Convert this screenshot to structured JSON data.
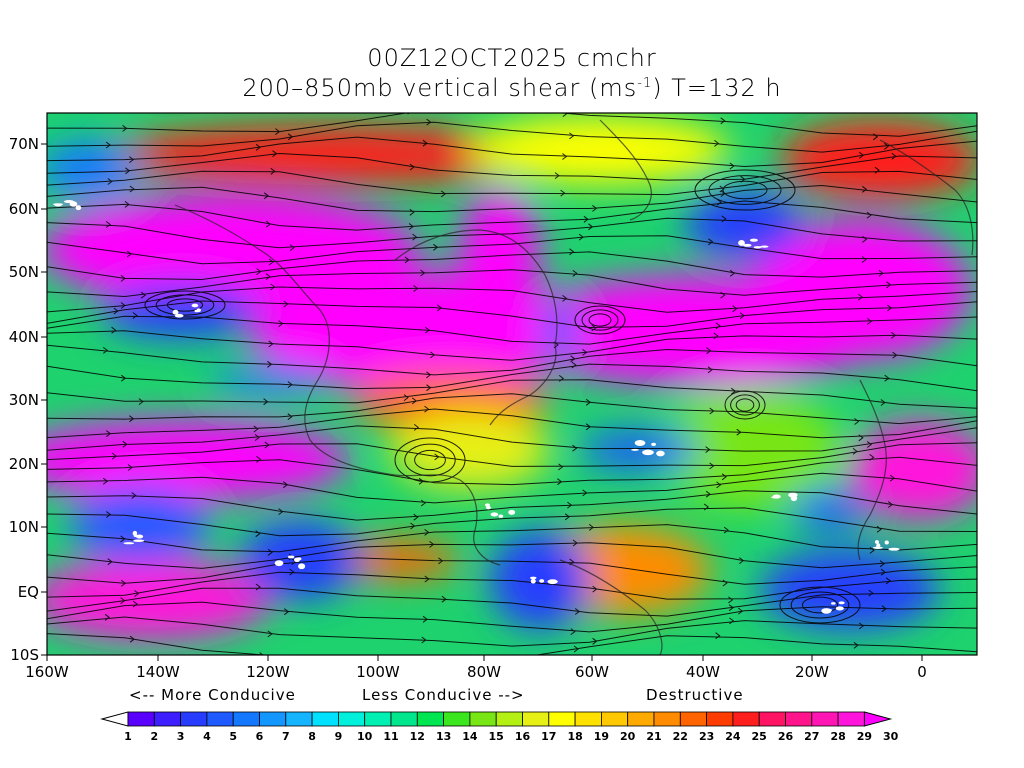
{
  "title": {
    "line1": "00Z12OCT2025 cmchr",
    "line2_pre": "200–850mb vertical shear (ms",
    "line2_sup": "-1",
    "line2_post": ") T=132 h"
  },
  "axes": {
    "lon_ticks": [
      "160W",
      "140W",
      "120W",
      "100W",
      "80W",
      "60W",
      "40W",
      "20W",
      "0"
    ],
    "lat_ticks": [
      "70N",
      "60N",
      "50N",
      "40N",
      "30N",
      "20N",
      "10N",
      "EQ",
      "10S"
    ]
  },
  "legend_captions": {
    "more": "<-- More Conducive",
    "less": "Less Conducive -->",
    "destructive": "Destructive"
  },
  "colorbar": {
    "labels": [
      "1",
      "2",
      "3",
      "4",
      "5",
      "6",
      "7",
      "8",
      "9",
      "10",
      "11",
      "12",
      "13",
      "14",
      "15",
      "16",
      "17",
      "18",
      "19",
      "20",
      "21",
      "22",
      "23",
      "24",
      "25",
      "26",
      "27",
      "28",
      "29",
      "30"
    ],
    "colors": [
      "#ffffff",
      "#5a00ff",
      "#3c1eff",
      "#283cff",
      "#1e5aff",
      "#1478ff",
      "#1496ff",
      "#14b4ff",
      "#00e1ff",
      "#00f0dc",
      "#00f0b4",
      "#00e68c",
      "#00e650",
      "#3ce61e",
      "#78e614",
      "#b4f014",
      "#e6f014",
      "#ffff00",
      "#ffe100",
      "#ffc800",
      "#ffaa00",
      "#ff8c00",
      "#ff6400",
      "#ff3c00",
      "#ff1e1e",
      "#ff1464",
      "#ff148c",
      "#ff14b4",
      "#ff14dc",
      "#ff00ff"
    ]
  },
  "color_scale": {
    "low": "#283cff",
    "mid": "#3ce61e",
    "high": "#ff00ff"
  }
}
